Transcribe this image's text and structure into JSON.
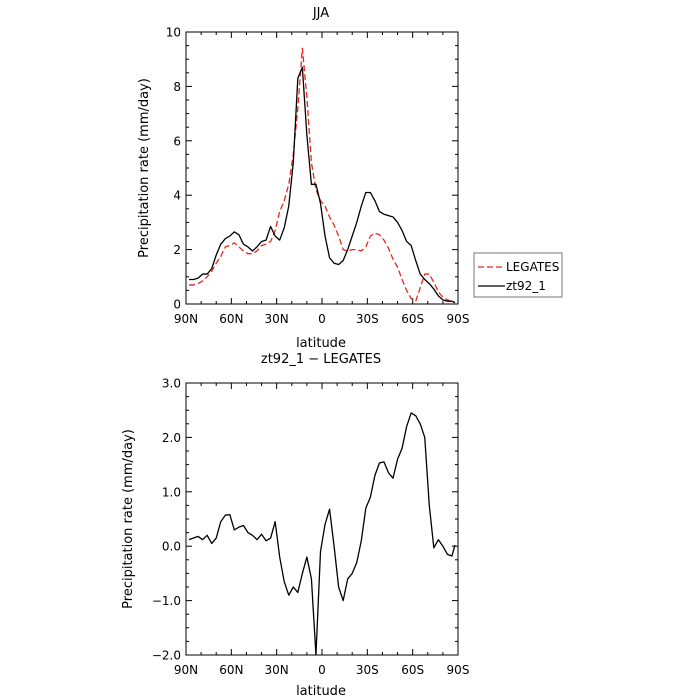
{
  "chart_data": [
    {
      "type": "line",
      "title": "JJA",
      "xlabel": "latitude",
      "ylabel": "Precipitation rate (mm/day)",
      "xlim": [
        90,
        -90
      ],
      "ylim": [
        0,
        10
      ],
      "x_ticks": [
        90,
        60,
        30,
        0,
        -30,
        -60,
        -90
      ],
      "x_tick_labels": [
        "90N",
        "60N",
        "30N",
        "0",
        "30S",
        "60S",
        "90S"
      ],
      "y_ticks": [
        0,
        2,
        4,
        6,
        8,
        10
      ],
      "y_tick_labels": [
        "0",
        "2",
        "4",
        "6",
        "8",
        "10"
      ],
      "legend": "right",
      "series": [
        {
          "name": "LEGATES",
          "color": "#e8261c",
          "dash": "dashed",
          "x": [
            88,
            85,
            82,
            79,
            76,
            73,
            70,
            67,
            64,
            61,
            58,
            55,
            52,
            49,
            46,
            43,
            40,
            37,
            34,
            31,
            28,
            25,
            22,
            19,
            16,
            13,
            10,
            7,
            4,
            1,
            -2,
            -5,
            -8,
            -11,
            -14,
            -17,
            -20,
            -23,
            -26,
            -29,
            -32,
            -35,
            -38,
            -41,
            -44,
            -47,
            -50,
            -53,
            -56,
            -59,
            -62,
            -65,
            -68,
            -71,
            -74,
            -77,
            -80,
            -83,
            -86,
            -88
          ],
          "values": [
            0.7,
            0.7,
            0.75,
            0.85,
            1.0,
            1.2,
            1.5,
            1.75,
            2.1,
            2.15,
            2.25,
            2.1,
            1.95,
            1.85,
            1.85,
            1.95,
            2.15,
            2.2,
            2.3,
            2.7,
            3.4,
            3.8,
            4.4,
            5.5,
            7.2,
            9.4,
            7.6,
            5.2,
            4.2,
            3.8,
            3.6,
            3.2,
            2.9,
            2.5,
            2.0,
            1.95,
            2.0,
            2.0,
            1.95,
            2.1,
            2.5,
            2.6,
            2.55,
            2.35,
            2.05,
            1.65,
            1.35,
            0.9,
            0.5,
            0.2,
            0.1,
            0.6,
            1.1,
            1.1,
            0.8,
            0.45,
            0.25,
            0.15,
            0.1,
            0.05
          ]
        },
        {
          "name": "zt92_1",
          "color": "#000000",
          "dash": "solid",
          "x": [
            88,
            85,
            82,
            79,
            76,
            73,
            70,
            67,
            64,
            61,
            58,
            55,
            52,
            49,
            46,
            43,
            40,
            37,
            34,
            31,
            28,
            25,
            22,
            19,
            16,
            13,
            10,
            7,
            4,
            1,
            -2,
            -5,
            -8,
            -11,
            -14,
            -17,
            -20,
            -23,
            -26,
            -29,
            -32,
            -35,
            -38,
            -41,
            -44,
            -47,
            -50,
            -53,
            -56,
            -59,
            -62,
            -65,
            -68,
            -71,
            -74,
            -77,
            -80,
            -83,
            -86,
            -88
          ],
          "values": [
            0.9,
            0.9,
            0.95,
            1.1,
            1.1,
            1.3,
            1.8,
            2.2,
            2.4,
            2.5,
            2.65,
            2.55,
            2.2,
            2.1,
            1.95,
            2.1,
            2.3,
            2.35,
            2.85,
            2.5,
            2.35,
            2.8,
            3.6,
            5.2,
            8.3,
            8.7,
            6.2,
            4.4,
            4.4,
            3.7,
            2.5,
            1.7,
            1.5,
            1.45,
            1.6,
            2.0,
            2.5,
            3.0,
            3.6,
            4.1,
            4.1,
            3.8,
            3.4,
            3.3,
            3.25,
            3.2,
            3.0,
            2.7,
            2.3,
            2.15,
            1.6,
            1.1,
            0.9,
            0.75,
            0.55,
            0.3,
            0.15,
            0.1,
            0.1,
            0.05
          ]
        }
      ]
    },
    {
      "type": "line",
      "title": "zt92_1 − LEGATES",
      "xlabel": "latitude",
      "ylabel": "Precipitation rate (mm/day)",
      "xlim": [
        90,
        -90
      ],
      "ylim": [
        -2.0,
        3.0
      ],
      "x_ticks": [
        90,
        60,
        30,
        0,
        -30,
        -60,
        -90
      ],
      "x_tick_labels": [
        "90N",
        "60N",
        "30N",
        "0",
        "30S",
        "60S",
        "90S"
      ],
      "y_ticks": [
        -2,
        -1,
        0,
        1,
        2,
        3
      ],
      "y_tick_labels": [
        "−2.0",
        "−1.0",
        "0.0",
        "1.0",
        "2.0",
        "3.0"
      ],
      "series": [
        {
          "color": "#000000",
          "dash": "solid",
          "x": [
            88,
            85,
            82,
            79,
            76,
            73,
            70,
            67,
            64,
            61,
            58,
            55,
            52,
            49,
            46,
            43,
            40,
            37,
            34,
            31,
            28,
            25,
            22,
            19,
            16,
            13,
            10,
            7,
            4,
            1,
            -2,
            -5,
            -8,
            -11,
            -14,
            -17,
            -20,
            -23,
            -26,
            -29,
            -32,
            -35,
            -38,
            -41,
            -44,
            -47,
            -50,
            -53,
            -56,
            -59,
            -62,
            -65,
            -68,
            -71,
            -74,
            -77,
            -80,
            -83,
            -86,
            -88
          ],
          "values": [
            0.12,
            0.15,
            0.18,
            0.12,
            0.2,
            0.05,
            0.15,
            0.45,
            0.57,
            0.58,
            0.3,
            0.35,
            0.38,
            0.25,
            0.2,
            0.12,
            0.22,
            0.1,
            0.15,
            0.45,
            -0.2,
            -0.65,
            -0.9,
            -0.75,
            -0.85,
            -0.5,
            -0.2,
            -0.6,
            -2.0,
            -0.1,
            0.4,
            0.68,
            0.0,
            -0.75,
            -1.0,
            -0.6,
            -0.5,
            -0.3,
            0.1,
            0.7,
            0.9,
            1.3,
            1.53,
            1.55,
            1.35,
            1.25,
            1.6,
            1.8,
            2.2,
            2.45,
            2.4,
            2.25,
            2.0,
            0.75,
            -0.03,
            0.12,
            0.0,
            -0.15,
            -0.18,
            0.02
          ]
        }
      ]
    }
  ]
}
